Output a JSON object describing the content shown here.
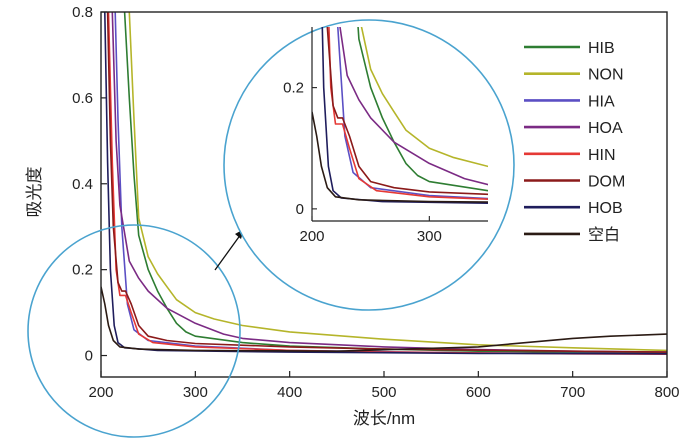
{
  "chart_data": {
    "type": "line",
    "xlabel": "波长/nm",
    "ylabel": "吸光度",
    "xlim": [
      200,
      800
    ],
    "ylim": [
      -0.05,
      0.8
    ],
    "x_ticks": [
      200,
      300,
      400,
      500,
      600,
      700,
      800
    ],
    "y_ticks": [
      0,
      0.2,
      0.4,
      0.6,
      0.8
    ],
    "y_tick_labels": [
      "0",
      "0.2",
      "0.4",
      "0.6",
      "0.8"
    ],
    "legend_position": "right",
    "series": [
      {
        "name": "HIB",
        "color": "#2e7d32",
        "points": [
          [
            225,
            0.8
          ],
          [
            230,
            0.6
          ],
          [
            235,
            0.42
          ],
          [
            240,
            0.28
          ],
          [
            250,
            0.2
          ],
          [
            260,
            0.15
          ],
          [
            270,
            0.11
          ],
          [
            280,
            0.075
          ],
          [
            290,
            0.055
          ],
          [
            300,
            0.045
          ],
          [
            350,
            0.03
          ],
          [
            400,
            0.022
          ],
          [
            500,
            0.015
          ],
          [
            600,
            0.01
          ],
          [
            700,
            0.008
          ],
          [
            800,
            0.006
          ]
        ]
      },
      {
        "name": "NON",
        "color": "#b5b52a",
        "points": [
          [
            230,
            0.8
          ],
          [
            235,
            0.55
          ],
          [
            240,
            0.32
          ],
          [
            250,
            0.23
          ],
          [
            260,
            0.19
          ],
          [
            270,
            0.16
          ],
          [
            280,
            0.13
          ],
          [
            300,
            0.1
          ],
          [
            320,
            0.085
          ],
          [
            350,
            0.07
          ],
          [
            400,
            0.055
          ],
          [
            500,
            0.038
          ],
          [
            600,
            0.025
          ],
          [
            700,
            0.018
          ],
          [
            800,
            0.012
          ]
        ]
      },
      {
        "name": "HIA",
        "color": "#5b4fc4",
        "points": [
          [
            215,
            0.8
          ],
          [
            218,
            0.55
          ],
          [
            222,
            0.3
          ],
          [
            228,
            0.12
          ],
          [
            235,
            0.06
          ],
          [
            250,
            0.035
          ],
          [
            300,
            0.022
          ],
          [
            400,
            0.012
          ],
          [
            600,
            0.006
          ],
          [
            800,
            0.004
          ]
        ]
      },
      {
        "name": "HOA",
        "color": "#7b2b84",
        "points": [
          [
            212,
            0.8
          ],
          [
            216,
            0.5
          ],
          [
            220,
            0.35
          ],
          [
            230,
            0.22
          ],
          [
            240,
            0.18
          ],
          [
            250,
            0.15
          ],
          [
            270,
            0.11
          ],
          [
            300,
            0.075
          ],
          [
            330,
            0.05
          ],
          [
            350,
            0.04
          ],
          [
            400,
            0.03
          ],
          [
            500,
            0.02
          ],
          [
            600,
            0.014
          ],
          [
            700,
            0.01
          ],
          [
            800,
            0.008
          ]
        ]
      },
      {
        "name": "HIN",
        "color": "#e53935",
        "points": [
          [
            208,
            0.8
          ],
          [
            212,
            0.45
          ],
          [
            216,
            0.2
          ],
          [
            220,
            0.14
          ],
          [
            226,
            0.14
          ],
          [
            232,
            0.1
          ],
          [
            240,
            0.05
          ],
          [
            255,
            0.03
          ],
          [
            300,
            0.02
          ],
          [
            400,
            0.012
          ],
          [
            500,
            0.008
          ],
          [
            700,
            0.004
          ],
          [
            800,
            0.003
          ]
        ]
      },
      {
        "name": "DOM",
        "color": "#8b1a1a",
        "points": [
          [
            207,
            0.8
          ],
          [
            210,
            0.5
          ],
          [
            213,
            0.3
          ],
          [
            218,
            0.17
          ],
          [
            222,
            0.15
          ],
          [
            226,
            0.15
          ],
          [
            232,
            0.12
          ],
          [
            240,
            0.07
          ],
          [
            250,
            0.045
          ],
          [
            270,
            0.035
          ],
          [
            300,
            0.028
          ],
          [
            400,
            0.02
          ],
          [
            500,
            0.015
          ],
          [
            700,
            0.01
          ],
          [
            800,
            0.008
          ]
        ]
      },
      {
        "name": "HOB",
        "color": "#1f1d5c",
        "points": [
          [
            204,
            0.8
          ],
          [
            207,
            0.45
          ],
          [
            210,
            0.2
          ],
          [
            214,
            0.07
          ],
          [
            218,
            0.03
          ],
          [
            225,
            0.018
          ],
          [
            260,
            0.012
          ],
          [
            400,
            0.008
          ],
          [
            600,
            0.005
          ],
          [
            800,
            0.004
          ]
        ]
      },
      {
        "name": "空白",
        "color": "#2b1b14",
        "points": [
          [
            200,
            0.16
          ],
          [
            204,
            0.12
          ],
          [
            208,
            0.07
          ],
          [
            213,
            0.035
          ],
          [
            220,
            0.02
          ],
          [
            240,
            0.015
          ],
          [
            300,
            0.012
          ],
          [
            450,
            0.01
          ],
          [
            600,
            0.02
          ],
          [
            700,
            0.04
          ],
          [
            740,
            0.045
          ],
          [
            800,
            0.05
          ]
        ]
      }
    ],
    "inset": {
      "xlim": [
        200,
        350
      ],
      "ylim": [
        -0.02,
        0.3
      ],
      "x_ticks": [
        200,
        300
      ],
      "y_ticks": [
        0,
        0.2
      ],
      "y_tick_labels": [
        "0",
        "0.2"
      ]
    }
  }
}
